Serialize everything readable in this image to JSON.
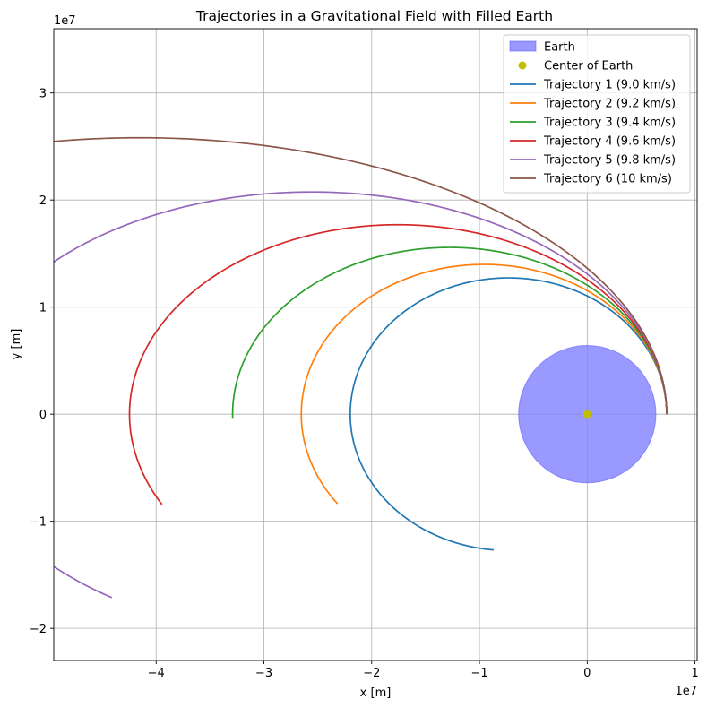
{
  "chart_data": {
    "type": "line",
    "title": "Trajectories in a Gravitational Field with Filled Earth",
    "xlabel": "x [m]",
    "ylabel": "y [m]",
    "x_offset_label": "1e7",
    "y_offset_label": "1e7",
    "xlim": [
      -49500000.0,
      10200000.0
    ],
    "ylim": [
      -23000000.0,
      36000000.0
    ],
    "x_ticks": [
      {
        "value": -40000000.0,
        "label": "−4"
      },
      {
        "value": -30000000.0,
        "label": "−3"
      },
      {
        "value": -20000000.0,
        "label": "−2"
      },
      {
        "value": -10000000.0,
        "label": "−1"
      },
      {
        "value": 0,
        "label": "0"
      },
      {
        "value": 10000000.0,
        "label": "1"
      }
    ],
    "y_ticks": [
      {
        "value": -20000000.0,
        "label": "−2"
      },
      {
        "value": -10000000.0,
        "label": "−1"
      },
      {
        "value": 0,
        "label": "0"
      },
      {
        "value": 10000000.0,
        "label": "1"
      },
      {
        "value": 20000000.0,
        "label": "2"
      },
      {
        "value": 30000000.0,
        "label": "3"
      }
    ],
    "grid": true,
    "legend_position": "top-right",
    "earth": {
      "label": "Earth",
      "radius": 6371000.0,
      "center": [
        0,
        0
      ],
      "color": "#8080ff"
    },
    "center_marker": {
      "label": "Center of Earth",
      "x": 0,
      "y": 0,
      "color": "#bfbf00"
    },
    "gm": 398600000000000.0,
    "start_position": [
      7371000.0,
      0
    ],
    "series": [
      {
        "name": "Trajectory 1 (9.0 km/s)",
        "speed_m_s": 9000,
        "end_x": -8700000.0,
        "color": "#1f77b4"
      },
      {
        "name": "Trajectory 2 (9.2 km/s)",
        "speed_m_s": 9200,
        "end_x": -23200000.0,
        "color": "#ff7f0e"
      },
      {
        "name": "Trajectory 3 (9.4 km/s)",
        "speed_m_s": 9400,
        "end_x": -32900000.0,
        "color": "#2ca02c"
      },
      {
        "name": "Trajectory 4 (9.6 km/s)",
        "speed_m_s": 9600,
        "end_x": -39500000.0,
        "color": "#d62728"
      },
      {
        "name": "Trajectory 5 (9.8 km/s)",
        "speed_m_s": 9800,
        "end_x": -44200000.0,
        "color": "#9467bd"
      },
      {
        "name": "Trajectory 6 (10 km/s)",
        "speed_m_s": 10000,
        "end_x": -47200000.0,
        "color": "#8c564b"
      }
    ]
  }
}
